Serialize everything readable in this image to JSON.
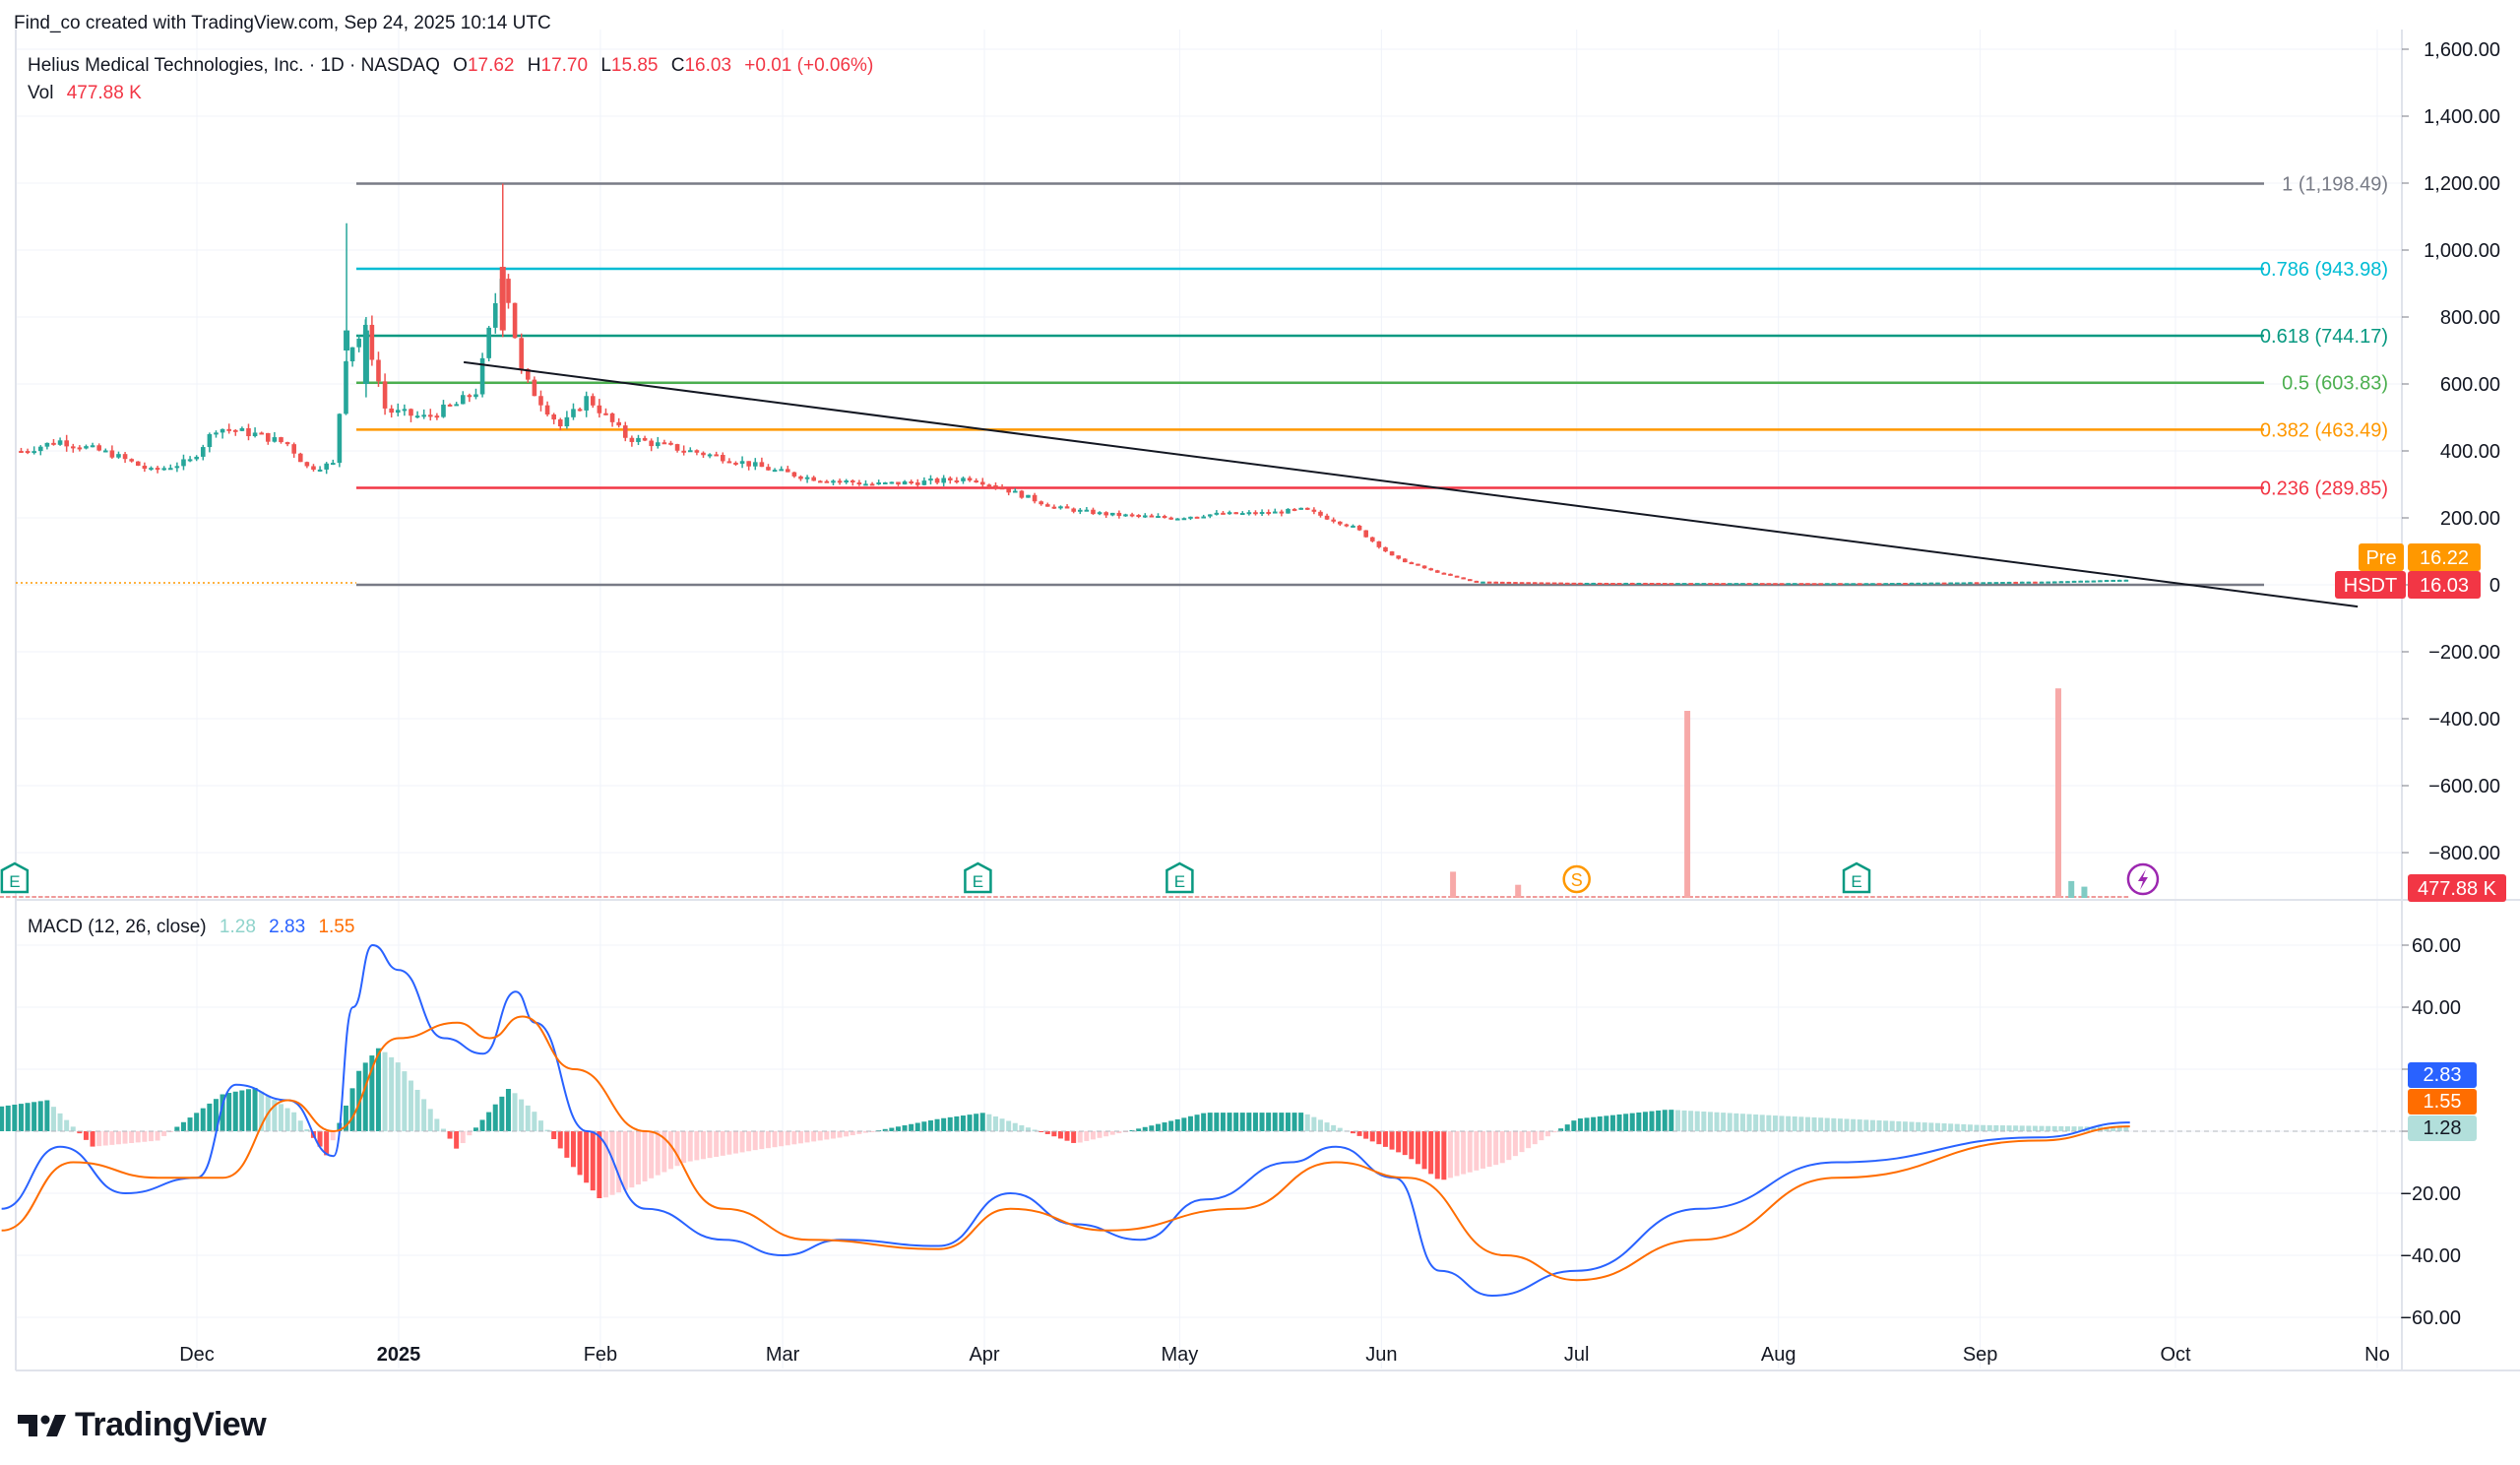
{
  "header": {
    "credit": "Find_co created with TradingView.com, Sep 24, 2025 10:14 UTC",
    "symbol_line": "Helius Medical Technologies, Inc. · 1D · NASDAQ",
    "open_label": "O",
    "open": "17.62",
    "high_label": "H",
    "high": "17.70",
    "low_label": "L",
    "low": "15.85",
    "close_label": "C",
    "close": "16.03",
    "change": "+0.01 (+0.06%)",
    "vol_label": "Vol",
    "vol": "477.88 K"
  },
  "macd_header": {
    "label": "MACD (12, 26, close)",
    "hist": "1.28",
    "macd": "2.83",
    "signal": "1.55"
  },
  "brand": "TradingView",
  "colors": {
    "up": "#26a69a",
    "down": "#ef5350",
    "macd": "#2962ff",
    "signal": "#ff6d00",
    "trend": "#131722"
  },
  "price_axis": [
    "1,600.00",
    "1,400.00",
    "1,200.00",
    "1,000.00",
    "800.00",
    "600.00",
    "400.00",
    "200.00",
    "0",
    "−200.00",
    "−400.00",
    "−600.00",
    "−800.00"
  ],
  "macd_axis": [
    "60.00",
    "40.00",
    "20.00",
    "0",
    "−20.00",
    "−40.00",
    "−60.00"
  ],
  "time_axis": [
    "Dec",
    "2025",
    "Feb",
    "Mar",
    "Apr",
    "May",
    "Jun",
    "Jul",
    "Aug",
    "Sep",
    "Oct",
    "No"
  ],
  "badges": {
    "pre_label": "Pre",
    "pre_value": "16.22",
    "sym_label": "HSDT",
    "sym_value": "16.03",
    "vol_value": "477.88 K",
    "macd_value": "2.83",
    "signal_value": "1.55",
    "hist_value": "1.28"
  },
  "event_markers": [
    "E",
    "E",
    "E",
    "S",
    "E"
  ],
  "chart_data": [
    {
      "type": "candlestick",
      "x_axis": "date",
      "y_range": [
        -900,
        1650
      ],
      "y_ticks": [
        1600,
        1400,
        1200,
        1000,
        800,
        600,
        400,
        200,
        0,
        -200,
        -400,
        -600,
        -800
      ],
      "fibonacci": [
        {
          "level": "1",
          "price": 1198.49,
          "label": "1 (1,198.49)",
          "color": "#787b86"
        },
        {
          "level": "0.786",
          "price": 943.98,
          "label": "0.786 (943.98)",
          "color": "#00bcd4"
        },
        {
          "level": "0.618",
          "price": 744.17,
          "label": "0.618 (744.17)",
          "color": "#089981"
        },
        {
          "level": "0.5",
          "price": 603.83,
          "label": "0.5 (603.83)",
          "color": "#4caf50"
        },
        {
          "level": "0.382",
          "price": 463.49,
          "label": "0.382 (463.49)",
          "color": "#ff9800"
        },
        {
          "level": "0.236",
          "price": 289.85,
          "label": "0.236 (289.85)",
          "color": "#f23645"
        },
        {
          "level": "0",
          "price": 0,
          "label": "0",
          "color": "#787b86"
        }
      ],
      "trendline": [
        {
          "date": "2025-01-11",
          "price": 665
        },
        {
          "date": "2025-10-29",
          "price": -65
        }
      ],
      "price_path": [
        {
          "date": "2024-11-04",
          "price": 400
        },
        {
          "date": "2024-11-10",
          "price": 430
        },
        {
          "date": "2024-11-18",
          "price": 390
        },
        {
          "date": "2024-11-24",
          "price": 340
        },
        {
          "date": "2024-11-30",
          "price": 370
        },
        {
          "date": "2024-12-04",
          "price": 470
        },
        {
          "date": "2024-12-10",
          "price": 450
        },
        {
          "date": "2024-12-15",
          "price": 420
        },
        {
          "date": "2024-12-18",
          "price": 350
        },
        {
          "date": "2024-12-22",
          "price": 360
        },
        {
          "date": "2024-12-24",
          "price": 700
        },
        {
          "date": "2024-12-27",
          "price": 760
        },
        {
          "date": "2024-12-30",
          "price": 520
        },
        {
          "date": "2025-01-05",
          "price": 500
        },
        {
          "date": "2025-01-10",
          "price": 540
        },
        {
          "date": "2025-01-13",
          "price": 580
        },
        {
          "date": "2025-01-17",
          "price": 950
        },
        {
          "date": "2025-01-20",
          "price": 620
        },
        {
          "date": "2025-01-26",
          "price": 470
        },
        {
          "date": "2025-01-30",
          "price": 560
        },
        {
          "date": "2025-02-05",
          "price": 440
        },
        {
          "date": "2025-02-12",
          "price": 410
        },
        {
          "date": "2025-02-20",
          "price": 380
        },
        {
          "date": "2025-02-28",
          "price": 340
        },
        {
          "date": "2025-03-05",
          "price": 320
        },
        {
          "date": "2025-03-15",
          "price": 300
        },
        {
          "date": "2025-03-25",
          "price": 310
        },
        {
          "date": "2025-03-30",
          "price": 320
        },
        {
          "date": "2025-04-05",
          "price": 280
        },
        {
          "date": "2025-04-12",
          "price": 230
        },
        {
          "date": "2025-04-20",
          "price": 210
        },
        {
          "date": "2025-04-30",
          "price": 200
        },
        {
          "date": "2025-05-05",
          "price": 210
        },
        {
          "date": "2025-05-15",
          "price": 215
        },
        {
          "date": "2025-05-20",
          "price": 225
        },
        {
          "date": "2025-05-28",
          "price": 170
        },
        {
          "date": "2025-06-03",
          "price": 80
        },
        {
          "date": "2025-06-09",
          "price": 40
        },
        {
          "date": "2025-06-15",
          "price": 10
        },
        {
          "date": "2025-07-01",
          "price": 6
        },
        {
          "date": "2025-08-15",
          "price": 5
        },
        {
          "date": "2025-09-12",
          "price": 10
        },
        {
          "date": "2025-09-24",
          "price": 16.03
        }
      ]
    },
    {
      "type": "bar",
      "name": "Vol",
      "spikes": [
        {
          "date": "2025-06-12",
          "relative": 0.14
        },
        {
          "date": "2025-06-22",
          "relative": 0.07
        },
        {
          "date": "2025-07-18",
          "relative": 1.0
        },
        {
          "date": "2025-09-13",
          "relative": 1.12
        },
        {
          "date": "2025-09-15",
          "relative": 0.09
        },
        {
          "date": "2025-09-17",
          "relative": 0.06
        }
      ]
    },
    {
      "type": "line",
      "name": "MACD (12, 26, close)",
      "y_range": [
        -67,
        68
      ],
      "y_ticks": [
        60,
        40,
        20,
        0,
        -20,
        -40,
        -60
      ],
      "series": [
        {
          "name": "MACD",
          "color": "#2962ff",
          "points": [
            {
              "date": "2024-11-01",
              "value": -25
            },
            {
              "date": "2024-11-10",
              "value": -5
            },
            {
              "date": "2024-11-20",
              "value": -20
            },
            {
              "date": "2024-12-01",
              "value": -15
            },
            {
              "date": "2024-12-07",
              "value": 15
            },
            {
              "date": "2024-12-15",
              "value": 10
            },
            {
              "date": "2024-12-22",
              "value": -8
            },
            {
              "date": "2024-12-25",
              "value": 40
            },
            {
              "date": "2024-12-28",
              "value": 60
            },
            {
              "date": "2025-01-01",
              "value": 52
            },
            {
              "date": "2025-01-08",
              "value": 30
            },
            {
              "date": "2025-01-14",
              "value": 25
            },
            {
              "date": "2025-01-19",
              "value": 45
            },
            {
              "date": "2025-01-22",
              "value": 35
            },
            {
              "date": "2025-01-30",
              "value": 0
            },
            {
              "date": "2025-02-08",
              "value": -25
            },
            {
              "date": "2025-02-20",
              "value": -35
            },
            {
              "date": "2025-03-01",
              "value": -40
            },
            {
              "date": "2025-03-10",
              "value": -35
            },
            {
              "date": "2025-03-25",
              "value": -37
            },
            {
              "date": "2025-04-05",
              "value": -20
            },
            {
              "date": "2025-04-15",
              "value": -30
            },
            {
              "date": "2025-04-25",
              "value": -35
            },
            {
              "date": "2025-05-05",
              "value": -22
            },
            {
              "date": "2025-05-18",
              "value": -10
            },
            {
              "date": "2025-05-25",
              "value": -5
            },
            {
              "date": "2025-06-03",
              "value": -15
            },
            {
              "date": "2025-06-10",
              "value": -45
            },
            {
              "date": "2025-06-18",
              "value": -53
            },
            {
              "date": "2025-07-01",
              "value": -45
            },
            {
              "date": "2025-07-20",
              "value": -25
            },
            {
              "date": "2025-08-10",
              "value": -10
            },
            {
              "date": "2025-09-10",
              "value": -2
            },
            {
              "date": "2025-09-24",
              "value": 2.83
            }
          ]
        },
        {
          "name": "Signal",
          "color": "#ff6d00",
          "points": [
            {
              "date": "2024-11-01",
              "value": -32
            },
            {
              "date": "2024-11-12",
              "value": -10
            },
            {
              "date": "2024-11-25",
              "value": -15
            },
            {
              "date": "2024-12-05",
              "value": -15
            },
            {
              "date": "2024-12-15",
              "value": 10
            },
            {
              "date": "2024-12-22",
              "value": 0
            },
            {
              "date": "2025-01-01",
              "value": 30
            },
            {
              "date": "2025-01-10",
              "value": 35
            },
            {
              "date": "2025-01-15",
              "value": 30
            },
            {
              "date": "2025-01-20",
              "value": 37
            },
            {
              "date": "2025-01-28",
              "value": 20
            },
            {
              "date": "2025-02-08",
              "value": 0
            },
            {
              "date": "2025-02-20",
              "value": -25
            },
            {
              "date": "2025-03-05",
              "value": -35
            },
            {
              "date": "2025-03-25",
              "value": -38
            },
            {
              "date": "2025-04-05",
              "value": -25
            },
            {
              "date": "2025-04-20",
              "value": -32
            },
            {
              "date": "2025-05-10",
              "value": -25
            },
            {
              "date": "2025-05-25",
              "value": -10
            },
            {
              "date": "2025-06-05",
              "value": -15
            },
            {
              "date": "2025-06-20",
              "value": -40
            },
            {
              "date": "2025-07-01",
              "value": -48
            },
            {
              "date": "2025-07-20",
              "value": -35
            },
            {
              "date": "2025-08-10",
              "value": -15
            },
            {
              "date": "2025-09-10",
              "value": -3
            },
            {
              "date": "2025-09-24",
              "value": 1.55
            }
          ]
        }
      ],
      "histogram": [
        {
          "date": "2024-11-01",
          "value": 8
        },
        {
          "date": "2024-11-08",
          "value": 10
        },
        {
          "date": "2024-11-15",
          "value": -5
        },
        {
          "date": "2024-11-25",
          "value": -3
        },
        {
          "date": "2024-12-05",
          "value": 12
        },
        {
          "date": "2024-12-10",
          "value": 14
        },
        {
          "date": "2024-12-16",
          "value": 6
        },
        {
          "date": "2024-12-21",
          "value": -8
        },
        {
          "date": "2024-12-26",
          "value": 20
        },
        {
          "date": "2024-12-29",
          "value": 27
        },
        {
          "date": "2025-01-01",
          "value": 22
        },
        {
          "date": "2025-01-05",
          "value": 10
        },
        {
          "date": "2025-01-10",
          "value": -6
        },
        {
          "date": "2025-01-18",
          "value": 14
        },
        {
          "date": "2025-01-22",
          "value": 6
        },
        {
          "date": "2025-01-28",
          "value": -12
        },
        {
          "date": "2025-02-01",
          "value": -22
        },
        {
          "date": "2025-02-06",
          "value": -18
        },
        {
          "date": "2025-02-14",
          "value": -10
        },
        {
          "date": "2025-02-25",
          "value": -6
        },
        {
          "date": "2025-03-10",
          "value": -2
        },
        {
          "date": "2025-03-25",
          "value": 4
        },
        {
          "date": "2025-04-01",
          "value": 6
        },
        {
          "date": "2025-04-15",
          "value": -4
        },
        {
          "date": "2025-05-05",
          "value": 6
        },
        {
          "date": "2025-05-20",
          "value": 6
        },
        {
          "date": "2025-06-05",
          "value": -8
        },
        {
          "date": "2025-06-10",
          "value": -16
        },
        {
          "date": "2025-06-20",
          "value": -10
        },
        {
          "date": "2025-07-01",
          "value": 4
        },
        {
          "date": "2025-07-15",
          "value": 7
        },
        {
          "date": "2025-08-01",
          "value": 5
        },
        {
          "date": "2025-09-01",
          "value": 2
        },
        {
          "date": "2025-09-24",
          "value": 1.28
        }
      ]
    }
  ]
}
